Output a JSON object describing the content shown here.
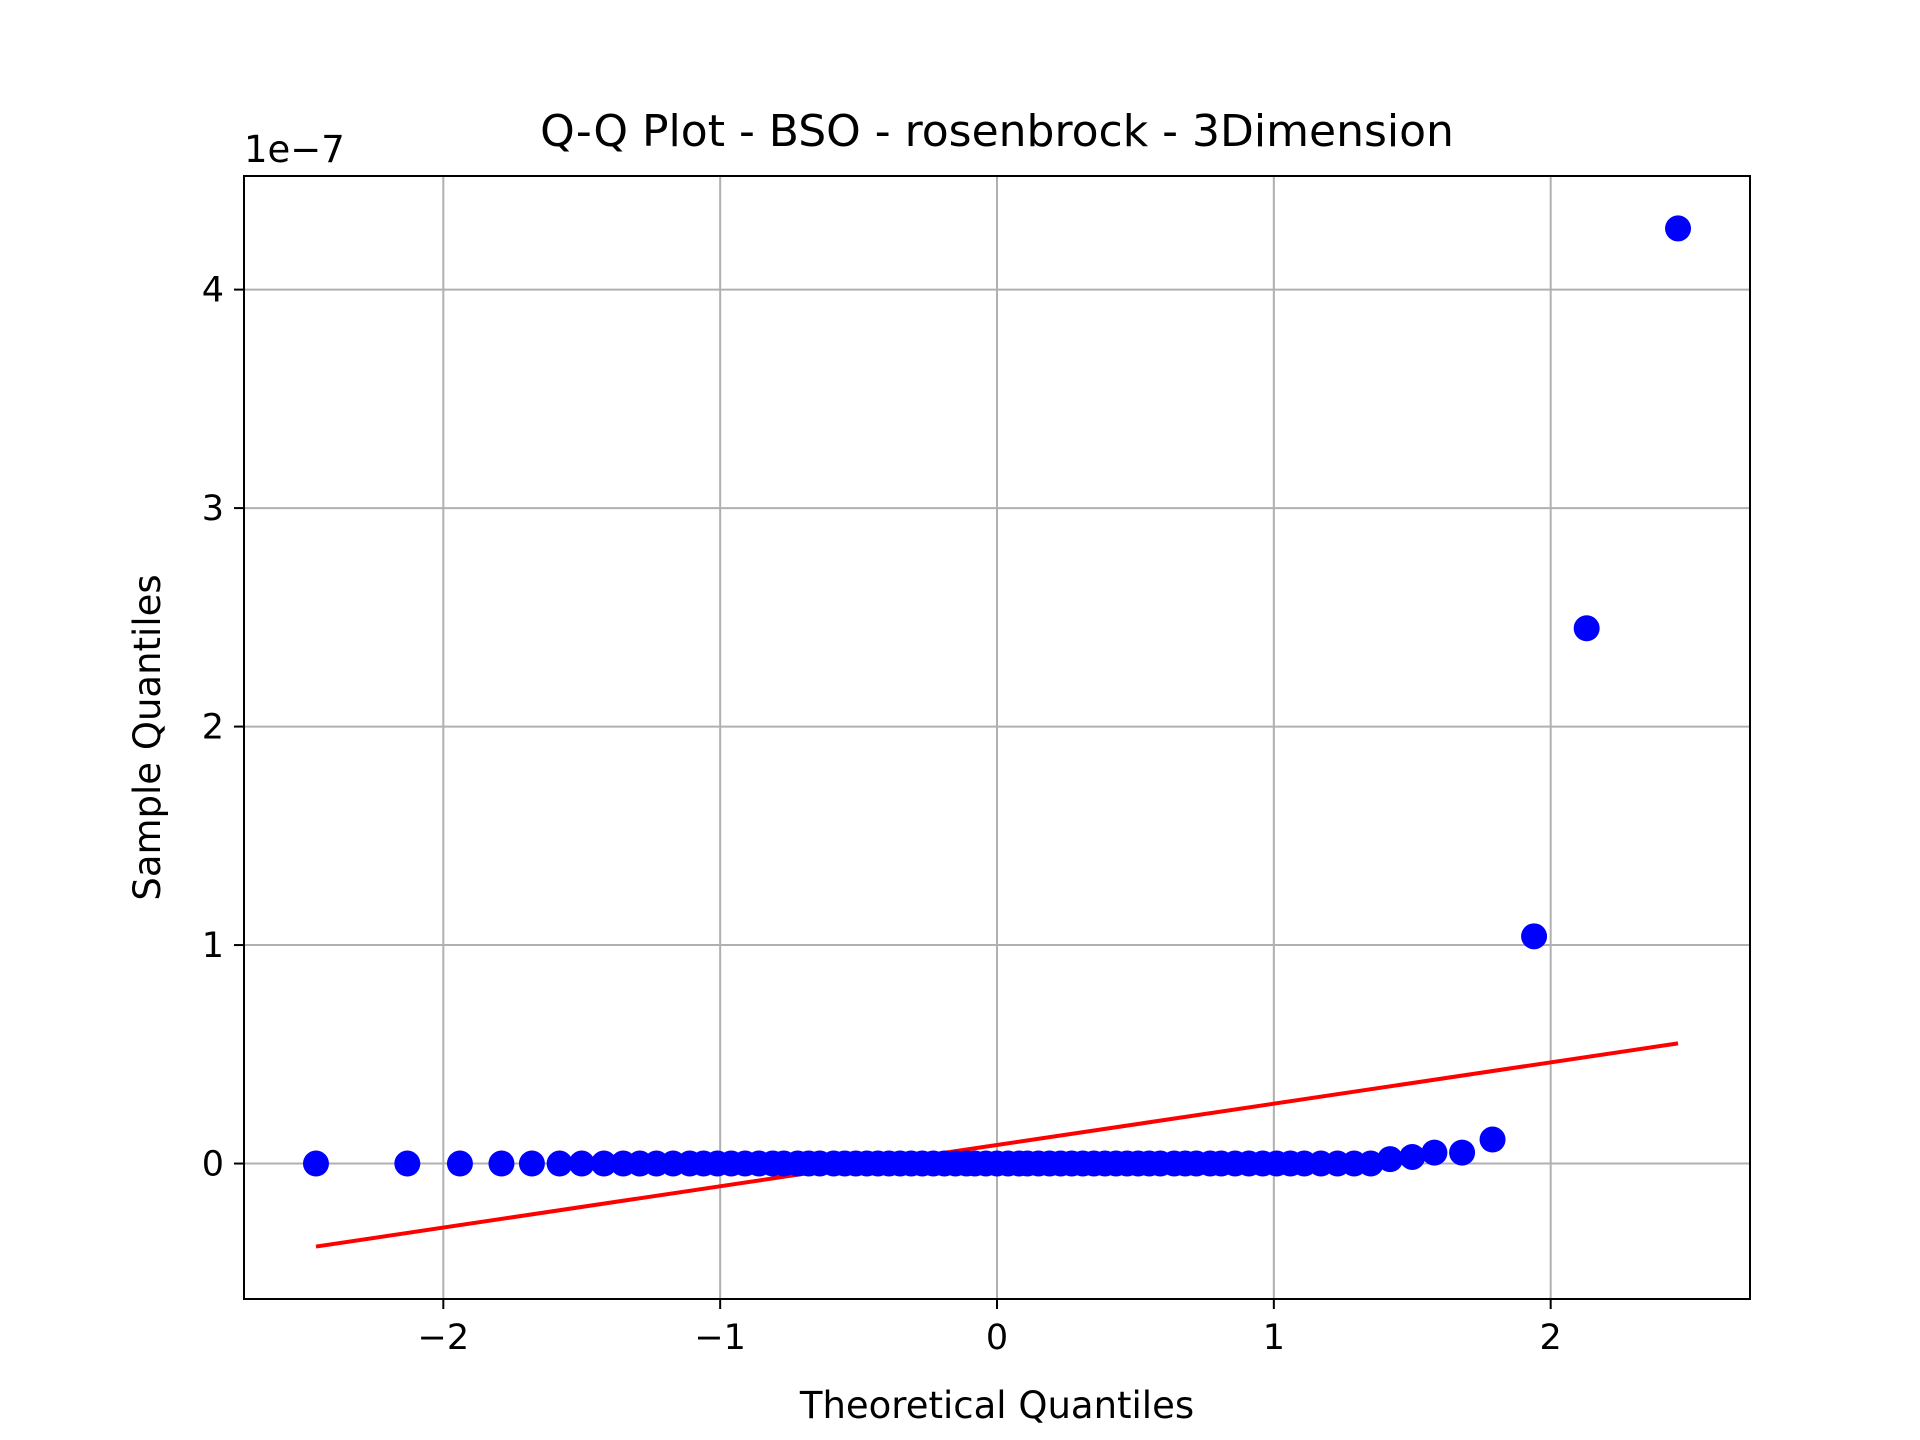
{
  "chart_data": {
    "type": "scatter",
    "title": "Q-Q Plot - BSO - rosenbrock - 3Dimension",
    "xlabel": "Theoretical Quantiles",
    "ylabel": "Sample Quantiles",
    "y_offset_label": "1e−7",
    "xlim": [
      -2.72,
      2.72
    ],
    "ylim": [
      -0.62,
      4.52
    ],
    "x_ticks": [
      -2,
      -1,
      0,
      1,
      2
    ],
    "x_tick_labels": [
      "−2",
      "−1",
      "0",
      "1",
      "2"
    ],
    "y_ticks": [
      0,
      1,
      2,
      3,
      4
    ],
    "y_tick_labels": [
      "0",
      "1",
      "2",
      "3",
      "4"
    ],
    "grid": true,
    "series": [
      {
        "kind": "points",
        "color": "#0000ff",
        "x": [
          -2.46,
          -2.13,
          -1.94,
          -1.79,
          -1.68,
          -1.58,
          -1.5,
          -1.42,
          -1.35,
          -1.29,
          -1.23,
          -1.17,
          -1.11,
          -1.06,
          -1.01,
          -0.96,
          -0.91,
          -0.86,
          -0.81,
          -0.77,
          -0.72,
          -0.68,
          -0.64,
          -0.59,
          -0.55,
          -0.51,
          -0.47,
          -0.43,
          -0.39,
          -0.35,
          -0.31,
          -0.27,
          -0.23,
          -0.19,
          -0.15,
          -0.11,
          -0.08,
          -0.04,
          0.0,
          0.04,
          0.08,
          0.11,
          0.15,
          0.19,
          0.23,
          0.27,
          0.31,
          0.35,
          0.39,
          0.43,
          0.47,
          0.51,
          0.55,
          0.59,
          0.64,
          0.68,
          0.72,
          0.77,
          0.81,
          0.86,
          0.91,
          0.96,
          1.01,
          1.06,
          1.11,
          1.17,
          1.23,
          1.29,
          1.35,
          1.42,
          1.5,
          1.58,
          1.68,
          1.79,
          1.94,
          2.13,
          2.46
        ],
        "y": [
          0,
          0,
          0,
          0,
          0,
          0,
          0,
          0,
          0,
          0,
          0,
          0,
          0,
          0,
          0,
          0,
          0,
          0,
          0,
          0,
          0,
          0,
          0,
          0,
          0,
          0,
          0,
          0,
          0,
          0,
          0,
          0,
          0,
          0,
          0,
          0,
          0,
          0,
          0,
          0,
          0,
          0,
          0,
          0,
          0,
          0,
          0,
          0,
          0,
          0,
          0,
          0,
          0,
          0,
          0,
          0,
          0,
          0,
          0,
          0,
          0,
          0,
          0,
          0,
          0,
          0,
          0,
          0,
          0,
          0.02,
          0.03,
          0.05,
          0.05,
          0.11,
          1.04,
          2.45,
          4.28
        ]
      },
      {
        "kind": "fit-line",
        "color": "#ff0000",
        "x": [
          -2.46,
          2.46
        ],
        "y": [
          -0.38,
          0.55
        ]
      }
    ]
  }
}
